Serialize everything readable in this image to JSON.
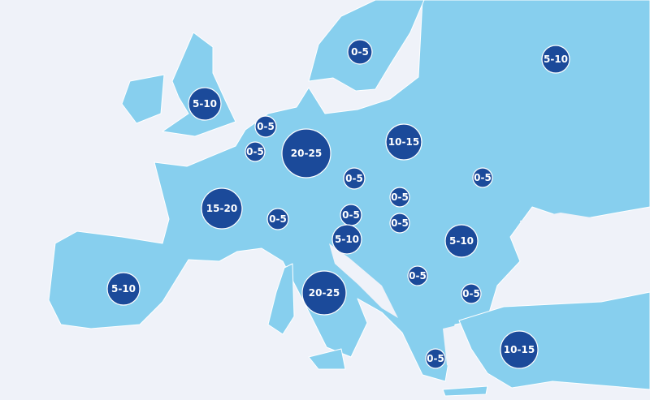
{
  "markers": [
    "5-10",
    "0-5",
    "5-10",
    "0-5",
    "0-5",
    "20-25",
    "10-15",
    "0-5",
    "0-5",
    "15-20",
    "0-5",
    "0-5",
    "0-5",
    "0-5",
    "5-10",
    "5-10",
    "5-10",
    "20-25",
    "0-5",
    "0-5",
    "10-15",
    "0-5"
  ]
}
